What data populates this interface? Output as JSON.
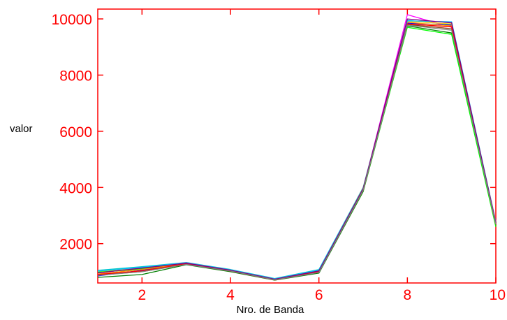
{
  "chart_data": {
    "type": "line",
    "title": "",
    "xlabel": "Nro. de Banda",
    "ylabel": "valor",
    "xlim": [
      1,
      10
    ],
    "ylim": [
      600,
      10350
    ],
    "x_ticks": [
      2,
      4,
      6,
      8,
      10
    ],
    "y_ticks": [
      2000,
      4000,
      6000,
      8000,
      10000
    ],
    "grid": false,
    "legend": "none",
    "axis_color": "#ff0000",
    "x": [
      1,
      2,
      3,
      4,
      5,
      6,
      7,
      8,
      9,
      10
    ],
    "series": [
      {
        "color": "#00c8c8",
        "values": [
          1050,
          1180,
          1330,
          1080,
          760,
          1080,
          4000,
          9950,
          9800,
          2750
        ]
      },
      {
        "color": "#ff00ff",
        "values": [
          950,
          1150,
          1320,
          1060,
          730,
          1000,
          3950,
          10150,
          9700,
          2800
        ]
      },
      {
        "color": "#0000ff",
        "values": [
          850,
          1050,
          1300,
          1040,
          720,
          1020,
          3900,
          9850,
          9780,
          2700
        ]
      },
      {
        "color": "#008000",
        "values": [
          800,
          900,
          1250,
          1000,
          700,
          950,
          3850,
          9750,
          9500,
          2650
        ]
      },
      {
        "color": "#ffd700",
        "values": [
          1000,
          1120,
          1310,
          1050,
          740,
          1040,
          3980,
          9920,
          9820,
          2780
        ]
      },
      {
        "color": "#00ff00",
        "values": [
          980,
          1100,
          1280,
          1030,
          710,
          990,
          3880,
          9700,
          9450,
          2600
        ]
      },
      {
        "color": "#ff8c00",
        "values": [
          920,
          1080,
          1290,
          1045,
          725,
          1010,
          3920,
          9880,
          9750,
          2720
        ]
      },
      {
        "color": "#00bfff",
        "values": [
          1020,
          1160,
          1315,
          1070,
          750,
          1060,
          3970,
          9930,
          9900,
          2760
        ]
      },
      {
        "color": "#8b4513",
        "values": [
          880,
          1000,
          1270,
          1020,
          705,
          980,
          3890,
          9800,
          9650,
          2680
        ]
      },
      {
        "color": "#ff0000",
        "values": [
          900,
          1030,
          1285,
          1035,
          715,
          1000,
          3930,
          9820,
          9720,
          2700
        ]
      },
      {
        "color": "#800080",
        "values": [
          960,
          1130,
          1305,
          1055,
          735,
          1030,
          3960,
          10000,
          9860,
          2740
        ]
      },
      {
        "color": "#808080",
        "values": [
          870,
          1000,
          1260,
          1025,
          712,
          975,
          3900,
          9780,
          9600,
          2690
        ]
      }
    ]
  }
}
